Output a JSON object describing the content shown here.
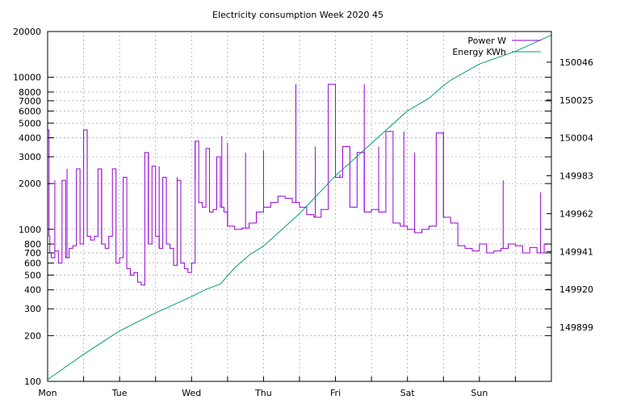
{
  "chart_data": {
    "type": "line",
    "title": "Electricity consumption Week 2020 45",
    "xlabel": "",
    "ylabel": "",
    "x_ticks": [
      "Mon",
      "Tue",
      "Wed",
      "Thu",
      "Fri",
      "Sat",
      "Sun"
    ],
    "xlim_days": [
      0,
      7
    ],
    "grid": true,
    "legend_position": "top-right",
    "y_left": {
      "scale": "log",
      "ylim": [
        100,
        20000
      ],
      "ticks": [
        100,
        200,
        300,
        400,
        500,
        600,
        700,
        800,
        1000,
        2000,
        3000,
        4000,
        5000,
        6000,
        7000,
        8000,
        10000,
        20000
      ],
      "tick_labels": [
        "100",
        "200",
        "300",
        "400",
        "500",
        "600",
        "700",
        "800",
        "1000",
        "2000",
        "3000",
        "4000",
        "5000",
        "6000",
        "7000",
        "8000",
        "10000",
        "20000"
      ]
    },
    "y_right": {
      "scale": "linear",
      "ylim": [
        149869,
        150063
      ],
      "ticks": [
        149899,
        149920,
        149941,
        149962,
        149983,
        150004,
        150025,
        150046
      ],
      "tick_labels": [
        "149899",
        "149920",
        "149941",
        "149962",
        "149983",
        "150004",
        "150025",
        "150046"
      ]
    },
    "series": [
      {
        "name": "Power W",
        "axis": "left",
        "color": "#9400d3",
        "x": [
          0.0,
          0.02,
          0.03,
          0.05,
          0.1,
          0.15,
          0.2,
          0.25,
          0.3,
          0.35,
          0.4,
          0.45,
          0.5,
          0.55,
          0.6,
          0.65,
          0.7,
          0.75,
          0.8,
          0.85,
          0.9,
          0.95,
          1.0,
          1.05,
          1.1,
          1.15,
          1.2,
          1.25,
          1.3,
          1.35,
          1.4,
          1.45,
          1.5,
          1.55,
          1.6,
          1.65,
          1.7,
          1.75,
          1.8,
          1.85,
          1.9,
          1.95,
          2.0,
          2.05,
          2.1,
          2.15,
          2.2,
          2.25,
          2.3,
          2.35,
          2.4,
          2.45,
          2.5,
          2.6,
          2.7,
          2.8,
          2.9,
          3.0,
          3.1,
          3.2,
          3.3,
          3.4,
          3.5,
          3.6,
          3.7,
          3.8,
          3.9,
          4.0,
          4.1,
          4.2,
          4.3,
          4.4,
          4.5,
          4.6,
          4.7,
          4.8,
          4.9,
          5.0,
          5.1,
          5.2,
          5.3,
          5.4,
          5.5,
          5.6,
          5.7,
          5.8,
          5.9,
          6.0,
          6.1,
          6.2,
          6.3,
          6.4,
          6.5,
          6.6,
          6.7,
          6.8,
          6.9,
          7.0
        ],
        "values": [
          4500,
          900,
          700,
          650,
          720,
          600,
          2100,
          650,
          750,
          780,
          2500,
          800,
          4500,
          900,
          850,
          900,
          2500,
          800,
          750,
          900,
          2500,
          600,
          650,
          2200,
          550,
          500,
          520,
          450,
          430,
          3200,
          800,
          2600,
          900,
          750,
          2200,
          800,
          750,
          580,
          2100,
          600,
          550,
          520,
          600,
          3800,
          1500,
          1400,
          3400,
          1300,
          1350,
          3000,
          1400,
          1300,
          1050,
          1000,
          1020,
          1100,
          1300,
          1400,
          1500,
          1650,
          1600,
          1500,
          1400,
          1250,
          1200,
          1350,
          9000,
          2200,
          3500,
          1400,
          3200,
          1300,
          1350,
          1300,
          4400,
          1100,
          1050,
          1000,
          950,
          1000,
          1050,
          4300,
          1200,
          1100,
          780,
          750,
          720,
          800,
          700,
          720,
          750,
          800,
          780,
          700,
          760,
          700,
          800,
          820
        ],
        "spikes": [
          {
            "x": 0.01,
            "value": 4500
          },
          {
            "x": 0.1,
            "value": 2100
          },
          {
            "x": 0.27,
            "value": 2500
          },
          {
            "x": 0.55,
            "value": 4500
          },
          {
            "x": 0.75,
            "value": 2500
          },
          {
            "x": 0.92,
            "value": 2500
          },
          {
            "x": 1.05,
            "value": 2200
          },
          {
            "x": 1.4,
            "value": 3200
          },
          {
            "x": 1.55,
            "value": 2600
          },
          {
            "x": 1.8,
            "value": 2200
          },
          {
            "x": 2.05,
            "value": 2100
          },
          {
            "x": 2.42,
            "value": 4100
          },
          {
            "x": 2.5,
            "value": 3700
          },
          {
            "x": 2.75,
            "value": 3200
          },
          {
            "x": 3.0,
            "value": 3300
          },
          {
            "x": 3.45,
            "value": 9000
          },
          {
            "x": 3.72,
            "value": 3500
          },
          {
            "x": 4.06,
            "value": 2300
          },
          {
            "x": 4.4,
            "value": 9000
          },
          {
            "x": 4.6,
            "value": 3500
          },
          {
            "x": 4.95,
            "value": 4400
          },
          {
            "x": 5.1,
            "value": 3200
          },
          {
            "x": 5.5,
            "value": 4400
          },
          {
            "x": 6.33,
            "value": 2100
          },
          {
            "x": 6.85,
            "value": 1750
          }
        ]
      },
      {
        "name": "Energy KWh",
        "axis": "right",
        "color": "#009e73",
        "x": [
          0.0,
          0.5,
          1.0,
          1.5,
          2.0,
          2.2,
          2.4,
          2.6,
          2.8,
          3.0,
          3.5,
          4.0,
          4.5,
          5.0,
          5.3,
          5.5,
          5.6,
          6.0,
          6.5,
          7.0
        ],
        "values": [
          149870,
          149884,
          149897,
          149907,
          149916,
          149920,
          149923,
          149932,
          149939,
          149944,
          149962,
          149983,
          150001,
          150019,
          150026,
          150033,
          150036,
          150045,
          150052,
          150061
        ]
      }
    ]
  }
}
